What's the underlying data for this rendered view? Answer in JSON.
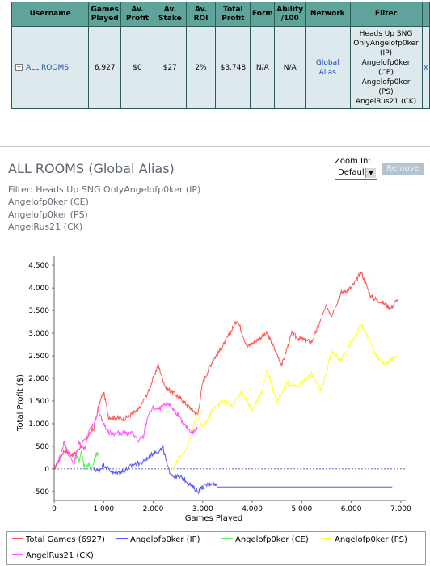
{
  "table": {
    "headers": [
      "Username",
      "Games Played",
      "Av. Profit",
      "Av. Stake",
      "Av. ROI",
      "Total Profit",
      "Form",
      "Ability /100",
      "Network",
      "Filter"
    ],
    "row": {
      "expand": "+",
      "username": "ALL ROOMS",
      "games_played": "6.927",
      "av_profit": "$0",
      "av_stake": "$27",
      "av_roi": "2%",
      "total_profit": "$3.748",
      "form": "N/A",
      "ability": "N/A",
      "network": "Global Alias",
      "filter_lines": [
        "Heads Up SNG",
        "OnlyAngelofp0ker",
        "(IP)",
        "Angelofp0ker",
        "(CE)",
        "Angelofp0ker",
        "(PS)",
        "AngelRus21 (CK)"
      ],
      "remove": "x"
    }
  },
  "header": {
    "title": "ALL ROOMS (Global Alias)",
    "filter_lines": [
      "Filter: Heads Up SNG OnlyAngelofp0ker (IP)",
      "Angelofp0ker (CE)",
      "Angelofp0ker (PS)",
      "AngelRus21 (CK)"
    ]
  },
  "zoom": {
    "label": "Zoom In:",
    "value": "Default",
    "remove_label": "Remove"
  },
  "chart_data": {
    "type": "line",
    "xlabel": "Games Played",
    "ylabel": "Total Profit ($)",
    "xlim": [
      0,
      7100
    ],
    "ylim": [
      -700,
      4700
    ],
    "x_ticks": [
      0,
      1000,
      2000,
      3000,
      4000,
      5000,
      6000,
      7000
    ],
    "x_tick_labels": [
      "0",
      "1.000",
      "2.000",
      "3.000",
      "4.000",
      "5.000",
      "6.000",
      "7.000"
    ],
    "y_ticks": [
      -500,
      0,
      500,
      1000,
      1500,
      2000,
      2500,
      3000,
      3500,
      4000,
      4500
    ],
    "y_tick_labels": [
      "-500",
      "0",
      "500",
      "1.000",
      "1.500",
      "2.000",
      "2.500",
      "3.000",
      "3.500",
      "4.000",
      "4.500"
    ],
    "grid": false,
    "zero_line": true,
    "legend_placement": "bottom",
    "series": [
      {
        "name": "Total Games (6927)",
        "color": "#ff5555",
        "x": [
          0,
          200,
          400,
          600,
          800,
          900,
          1000,
          1100,
          1400,
          1700,
          1900,
          2100,
          2250,
          2450,
          2600,
          2750,
          2900,
          3000,
          3200,
          3400,
          3700,
          3900,
          4300,
          4600,
          4800,
          4900,
          5200,
          5500,
          5600,
          5800,
          6000,
          6200,
          6400,
          6600,
          6800,
          6927
        ],
        "y": [
          0,
          400,
          300,
          600,
          900,
          1400,
          1700,
          1150,
          1100,
          1300,
          1700,
          2300,
          1800,
          1650,
          1500,
          1350,
          1200,
          1900,
          2400,
          2700,
          3300,
          2700,
          3000,
          2300,
          3000,
          2900,
          2800,
          3600,
          3400,
          3900,
          4000,
          4350,
          3800,
          3700,
          3550,
          3748
        ]
      },
      {
        "name": "Angelofp0ker (IP)",
        "color": "#5555ff",
        "x": [
          800,
          900,
          1000,
          1100,
          1200,
          1400,
          1600,
          1800,
          2000,
          2200,
          2300,
          2400,
          2600,
          2800,
          2900,
          3000,
          3100,
          3200,
          3300,
          5000,
          6827
        ],
        "y": [
          0,
          -50,
          100,
          0,
          -100,
          -50,
          100,
          150,
          350,
          450,
          0,
          -150,
          -200,
          -400,
          -500,
          -400,
          -350,
          -300,
          -400,
          -400,
          -400
        ]
      },
      {
        "name": "Angelofp0ker (CE)",
        "color": "#55ee55",
        "x": [
          400,
          450,
          500,
          550,
          600,
          650,
          700,
          750,
          800,
          850,
          900
        ],
        "y": [
          100,
          300,
          200,
          350,
          100,
          0,
          150,
          -50,
          150,
          300,
          350
        ]
      },
      {
        "name": "Angelofp0ker (PS)",
        "color": "#ffff33",
        "x": [
          2400,
          2500,
          2700,
          2800,
          2900,
          3000,
          3200,
          3400,
          3600,
          3800,
          4000,
          4200,
          4300,
          4500,
          4700,
          4900,
          5200,
          5400,
          5600,
          5800,
          6000,
          6200,
          6300,
          6500,
          6700,
          6900
        ],
        "y": [
          0,
          200,
          500,
          900,
          1200,
          900,
          1300,
          1500,
          1400,
          1700,
          1300,
          1700,
          2200,
          1500,
          1900,
          1800,
          2100,
          1700,
          2600,
          2400,
          2800,
          3200,
          3000,
          2500,
          2300,
          2500
        ]
      },
      {
        "name": "AngelRus21 (CK)",
        "color": "#ff55ff",
        "x": [
          0,
          100,
          200,
          300,
          400,
          500,
          600,
          700,
          800,
          900,
          950,
          1000,
          1100,
          1200,
          1400,
          1600,
          1700,
          1800,
          1900,
          2000,
          2100,
          2300,
          2500,
          2600,
          2800,
          2900
        ],
        "y": [
          0,
          200,
          600,
          300,
          100,
          600,
          400,
          800,
          1000,
          1300,
          1150,
          1000,
          800,
          780,
          800,
          780,
          600,
          700,
          1200,
          1350,
          1300,
          1450,
          1200,
          1000,
          800,
          900
        ]
      }
    ]
  }
}
